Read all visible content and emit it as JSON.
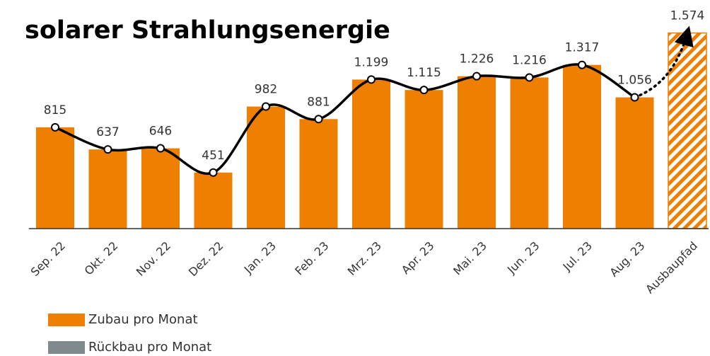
{
  "chart_data": {
    "type": "bar",
    "title": "solarer Strahlungsenergie",
    "categories": [
      "Sep. 22",
      "Okt. 22",
      "Nov. 22",
      "Dez. 22",
      "Jan. 23",
      "Feb. 23",
      "Mrz. 23",
      "Apr. 23",
      "Mai. 23",
      "Jun. 23",
      "Jul. 23",
      "Aug. 23",
      "Ausbaupfad"
    ],
    "series": [
      {
        "name": "Zubau pro Monat",
        "color": "#ee7f00",
        "values": [
          815,
          637,
          646,
          451,
          982,
          881,
          1199,
          1115,
          1226,
          1216,
          1317,
          1056,
          1574
        ],
        "value_labels": [
          "815",
          "637",
          "646",
          "451",
          "982",
          "881",
          "1.199",
          "1.115",
          "1.226",
          "1.216",
          "1.317",
          "1.056",
          "1.574"
        ]
      },
      {
        "name": "Rückbau pro Monat",
        "color": "#7f8a8f",
        "values": [
          null,
          null,
          null,
          null,
          null,
          null,
          null,
          null,
          null,
          null,
          null,
          null,
          null
        ]
      }
    ],
    "line_color": "#000000",
    "hatch_last": true,
    "ylim": [
      0,
      1600
    ]
  }
}
